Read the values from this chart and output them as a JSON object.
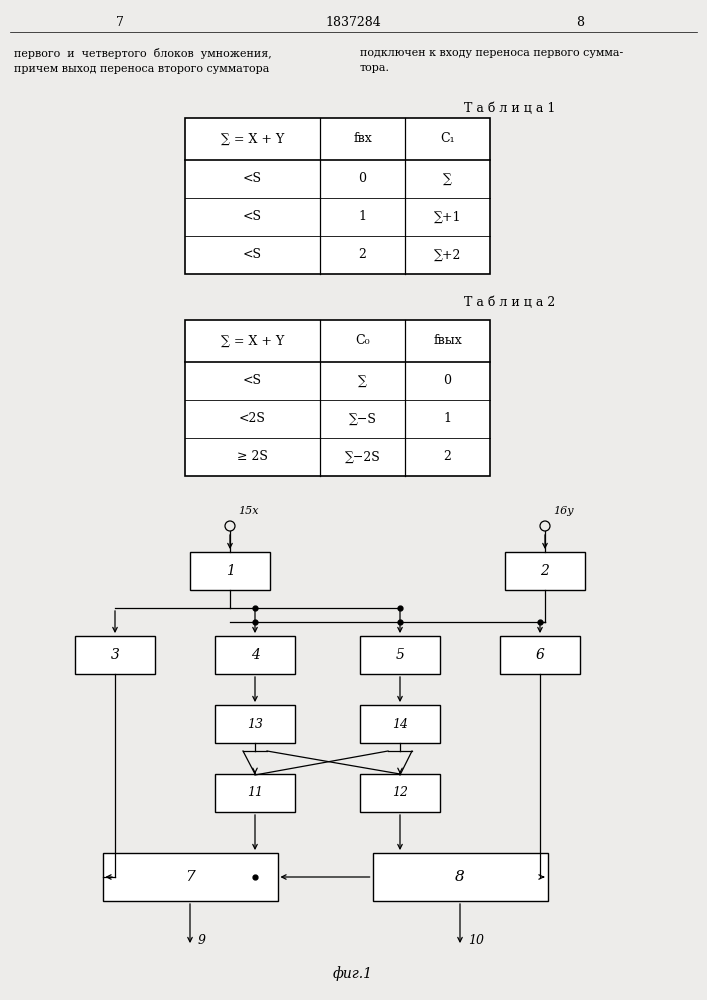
{
  "page_number_left": "7",
  "page_number_center": "1837284",
  "page_number_right": "8",
  "text_left": "первого  и  четвертого  блоков  умножения,\nпричем выход переноса второго сумматора",
  "text_right": "подключен к входу переноса первого сумма-\nтора.",
  "table1_title": "Т а б л и ц а 1",
  "table1_headers": [
    "∑ = X + Y",
    "fвх",
    "C₁"
  ],
  "table1_rows": [
    [
      "<S",
      "0",
      "∑"
    ],
    [
      "<S",
      "1",
      "∑+1"
    ],
    [
      "<S",
      "2",
      "∑+2"
    ]
  ],
  "table2_title": "Т а б л и ц а 2",
  "table2_headers": [
    "∑ = X + Y",
    "C₀",
    "fвых"
  ],
  "table2_rows": [
    [
      "<S",
      "∑",
      "0"
    ],
    [
      "<2S",
      "∑−S",
      "1"
    ],
    [
      "≥ 2S",
      "∑−2S",
      "2"
    ]
  ],
  "fig_caption": "фиг.1",
  "bg_color": "#edecea"
}
